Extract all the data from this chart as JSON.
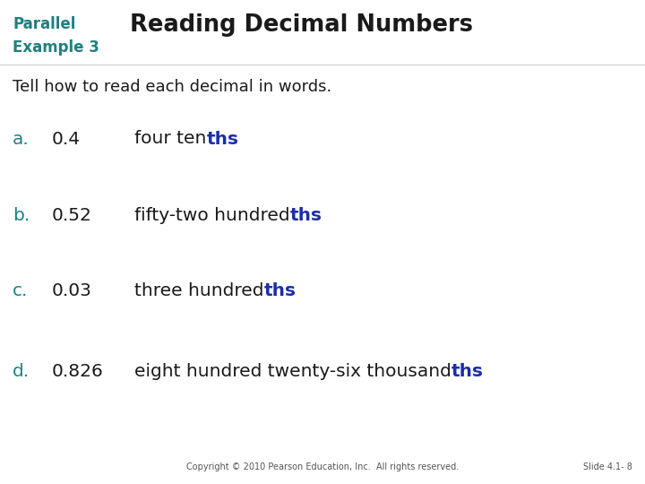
{
  "bg_color": "#ffffff",
  "left_bar_color": "#1e8080",
  "header_label_color": "#1e8080",
  "header_title_color": "#1a1a1a",
  "subtitle_color": "#1a1a1a",
  "letter_color": "#1e8080",
  "number_color": "#1a1a1a",
  "text_black_color": "#1a1a1a",
  "text_blue_color": "#1a2faa",
  "footer_color": "#555555",
  "header_label_line1": "Parallel",
  "header_label_line2": "Example 3",
  "header_title": "Reading Decimal Numbers",
  "subtitle": "Tell how to read each decimal in words.",
  "items": [
    {
      "letter": "a.",
      "number": "0.4",
      "text_before": "four ten",
      "text_highlight": "ths"
    },
    {
      "letter": "b.",
      "number": "0.52",
      "text_before": "fifty-two hundred",
      "text_highlight": "ths"
    },
    {
      "letter": "c.",
      "number": "0.03",
      "text_before": "three hundred",
      "text_highlight": "ths"
    },
    {
      "letter": "d.",
      "number": "0.826",
      "text_before": "eight hundred twenty-six thousand",
      "text_highlight": "ths"
    }
  ],
  "footer_left": "Copyright © 2010 Pearson Education, Inc.  All rights reserved.",
  "footer_right": "Slide 4.1- 8",
  "fig_width": 7.2,
  "fig_height": 5.4,
  "dpi": 100
}
